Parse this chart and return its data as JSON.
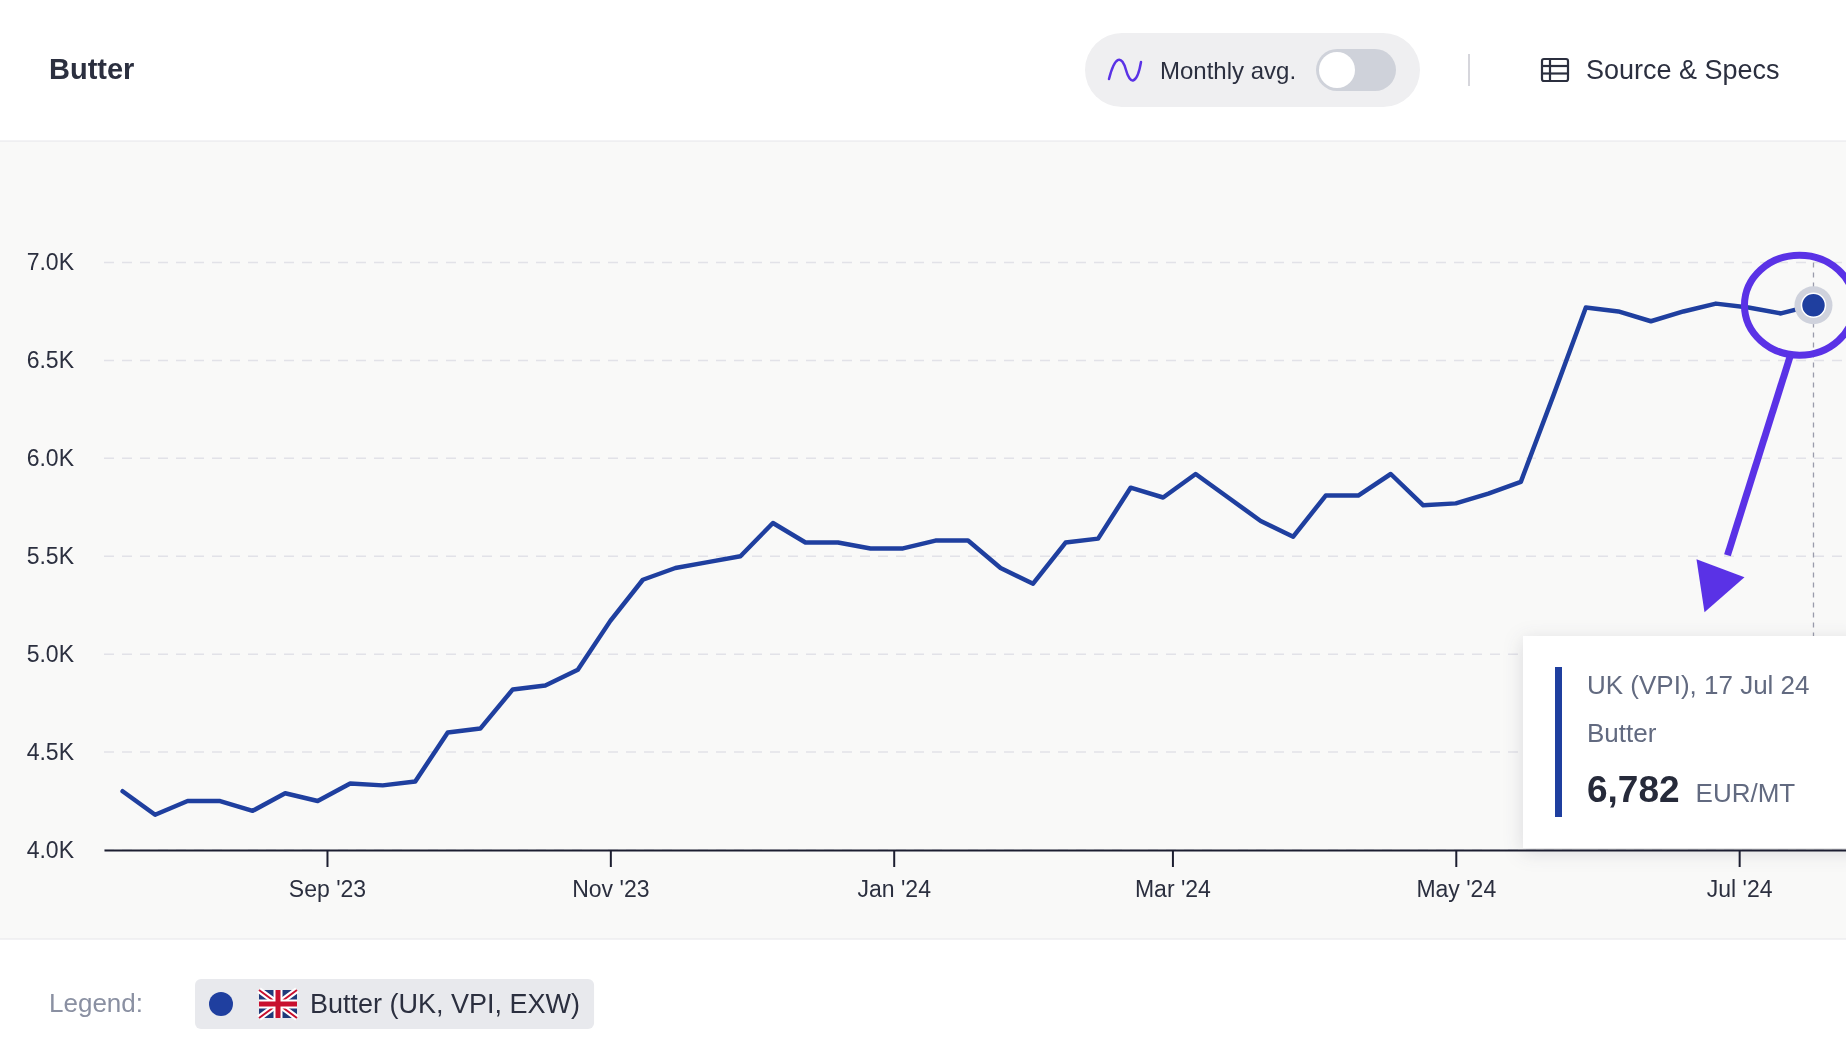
{
  "chart_data": {
    "type": "line",
    "title": "Butter",
    "x": [
      "2023-07-19",
      "2023-07-26",
      "2023-08-02",
      "2023-08-09",
      "2023-08-16",
      "2023-08-23",
      "2023-08-30",
      "2023-09-06",
      "2023-09-13",
      "2023-09-20",
      "2023-09-27",
      "2023-10-04",
      "2023-10-11",
      "2023-10-18",
      "2023-10-25",
      "2023-11-01",
      "2023-11-08",
      "2023-11-15",
      "2023-11-22",
      "2023-11-29",
      "2023-12-06",
      "2023-12-13",
      "2023-12-20",
      "2023-12-27",
      "2024-01-03",
      "2024-01-10",
      "2024-01-17",
      "2024-01-24",
      "2024-01-31",
      "2024-02-07",
      "2024-02-14",
      "2024-02-21",
      "2024-02-28",
      "2024-03-06",
      "2024-03-13",
      "2024-03-20",
      "2024-03-27",
      "2024-04-03",
      "2024-04-10",
      "2024-04-17",
      "2024-04-24",
      "2024-05-01",
      "2024-05-08",
      "2024-05-15",
      "2024-05-22",
      "2024-05-29",
      "2024-06-05",
      "2024-06-12",
      "2024-06-19",
      "2024-06-26",
      "2024-07-03",
      "2024-07-10",
      "2024-07-17"
    ],
    "series": [
      {
        "name": "Butter (UK, VPI, EXW)",
        "color": "#1f3f9f",
        "values": [
          4300,
          4180,
          4250,
          4250,
          4200,
          4290,
          4250,
          4340,
          4330,
          4350,
          4600,
          4620,
          4820,
          4840,
          4920,
          5170,
          5380,
          5440,
          5470,
          5500,
          5670,
          5570,
          5570,
          5540,
          5540,
          5580,
          5580,
          5440,
          5360,
          5570,
          5590,
          5850,
          5800,
          5920,
          5800,
          5680,
          5600,
          5810,
          5810,
          5920,
          5760,
          5770,
          5820,
          5880,
          6320,
          6770,
          6750,
          6700,
          6750,
          6790,
          6770,
          6740,
          6782
        ]
      }
    ],
    "xlim": [
      "2023-07-15",
      "2024-07-24"
    ],
    "xticks": [
      {
        "value": "2023-09-01",
        "label": "Sep '23"
      },
      {
        "value": "2023-11-01",
        "label": "Nov '23"
      },
      {
        "value": "2024-01-01",
        "label": "Jan '24"
      },
      {
        "value": "2024-03-01",
        "label": "Mar '24"
      },
      {
        "value": "2024-05-01",
        "label": "May '24"
      },
      {
        "value": "2024-07-01",
        "label": "Jul '24"
      }
    ],
    "ylim": [
      4000,
      7000
    ],
    "ref_lines": [
      {
        "axis": "x",
        "value": "2024-07-17",
        "color": "#9a9cab",
        "line_style": "dashed"
      }
    ],
    "yticks": [
      {
        "value": 4000,
        "label": "4.0K"
      },
      {
        "value": 4500,
        "label": "4.5K"
      },
      {
        "value": 5000,
        "label": "5.0K"
      },
      {
        "value": 5500,
        "label": "5.5K"
      },
      {
        "value": 6000,
        "label": "6.0K"
      },
      {
        "value": 6500,
        "label": "6.5K"
      },
      {
        "value": 7000,
        "label": "7.0K"
      }
    ],
    "grid": "y",
    "legend": "bottom",
    "marker": "none",
    "line_style": "solid",
    "annotations": [
      "Monthly avg.",
      "Source & Specs",
      "Legend:",
      "UK (VPI), 17 Jul 24",
      "Butter",
      "6,782",
      "EUR/MT"
    ]
  }
}
